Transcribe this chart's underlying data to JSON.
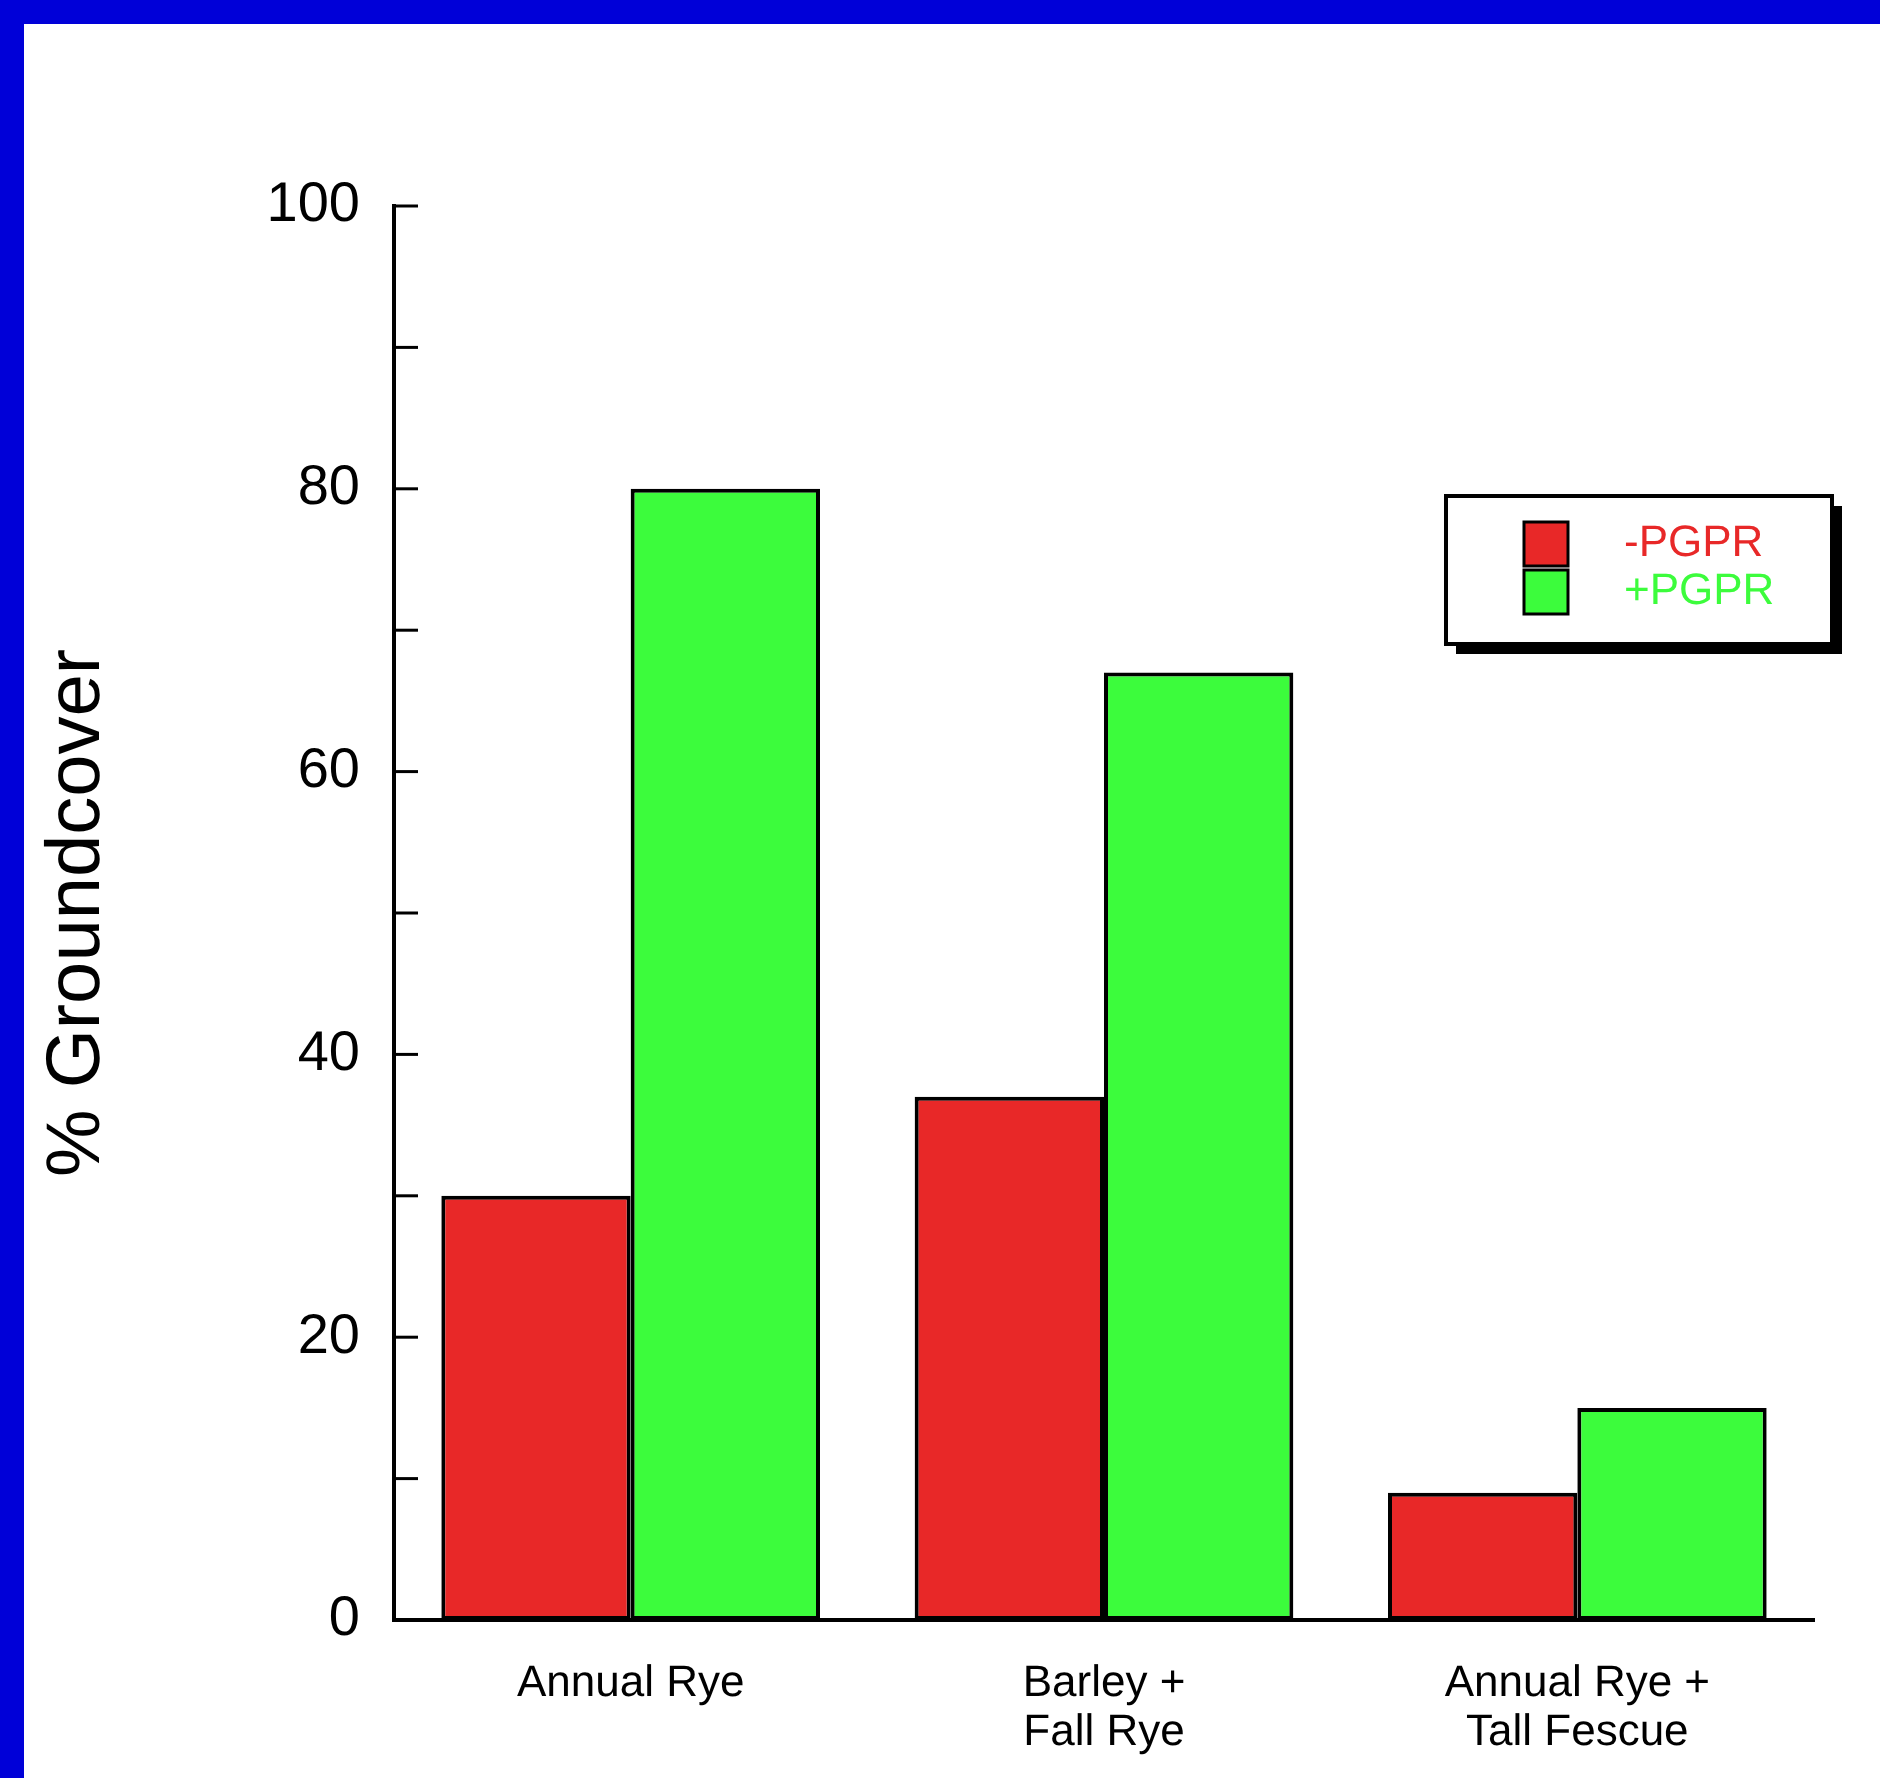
{
  "chart_data": {
    "type": "bar",
    "ylabel": "% Groundcover",
    "categories": [
      "Annual Rye",
      "Barley + Fall Rye",
      "Annual Rye + Tall Fescue"
    ],
    "series": [
      {
        "name": "-PGPR",
        "color": "#e82828",
        "values": [
          30,
          37,
          9
        ]
      },
      {
        "name": "+PGPR",
        "color": "#3cfc3c",
        "values": [
          80,
          67,
          15
        ]
      }
    ],
    "ylim": [
      0,
      100
    ],
    "yticks": [
      0,
      {
        "value": 10,
        "label": null
      },
      20,
      {
        "value": 30,
        "label": null
      },
      40,
      {
        "value": 50,
        "label": null
      },
      60,
      {
        "value": 70,
        "label": null
      },
      80,
      {
        "value": 90,
        "label": null
      },
      100
    ],
    "grid": false,
    "legend": "top right"
  }
}
